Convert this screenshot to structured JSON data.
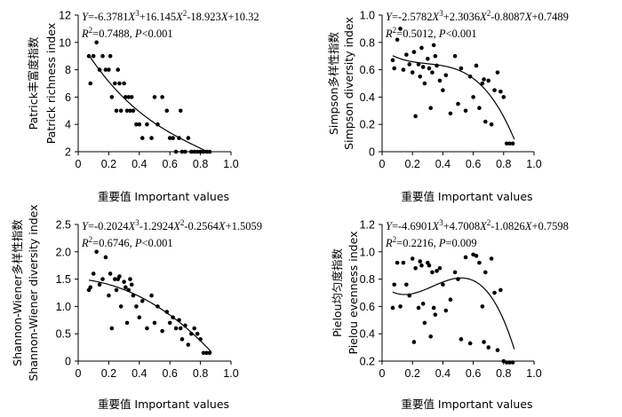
{
  "chart_data": [
    {
      "type": "scatter",
      "equation": "Y=-6.3781X³+16.145X²-18.923X+10.32",
      "r2": "R²=0.7488, P<0.001",
      "ylabel_cn": "Patrick丰富度指数",
      "ylabel_en": "Patrick richness index",
      "xlabel": "重要值 Important values",
      "xlim": [
        0,
        1.0
      ],
      "ylim": [
        2,
        12
      ],
      "xticks": [
        "0",
        "0.2",
        "0.4",
        "0.6",
        "0.8",
        "1.0"
      ],
      "xtick_values": [
        0,
        0.2,
        0.4,
        0.6,
        0.8,
        1.0
      ],
      "yticks": [
        "2",
        "4",
        "6",
        "8",
        "10",
        "12"
      ],
      "ytick_values": [
        2,
        4,
        6,
        8,
        10,
        12
      ],
      "coef": [
        -6.3781,
        16.145,
        -18.923,
        10.32
      ],
      "fit_range": [
        0.07,
        0.87
      ],
      "points": [
        [
          0.07,
          9
        ],
        [
          0.08,
          7
        ],
        [
          0.1,
          9
        ],
        [
          0.12,
          10
        ],
        [
          0.14,
          8
        ],
        [
          0.16,
          9
        ],
        [
          0.18,
          8
        ],
        [
          0.2,
          8
        ],
        [
          0.21,
          9
        ],
        [
          0.22,
          6
        ],
        [
          0.24,
          7
        ],
        [
          0.25,
          5
        ],
        [
          0.26,
          8
        ],
        [
          0.27,
          7
        ],
        [
          0.28,
          5
        ],
        [
          0.3,
          7
        ],
        [
          0.31,
          6
        ],
        [
          0.32,
          5
        ],
        [
          0.33,
          6
        ],
        [
          0.34,
          5
        ],
        [
          0.35,
          6
        ],
        [
          0.36,
          5
        ],
        [
          0.38,
          4
        ],
        [
          0.4,
          4
        ],
        [
          0.42,
          3
        ],
        [
          0.45,
          4
        ],
        [
          0.48,
          3
        ],
        [
          0.5,
          6
        ],
        [
          0.52,
          4
        ],
        [
          0.55,
          6
        ],
        [
          0.58,
          5
        ],
        [
          0.6,
          3
        ],
        [
          0.62,
          3
        ],
        [
          0.64,
          2
        ],
        [
          0.66,
          3
        ],
        [
          0.67,
          5
        ],
        [
          0.68,
          2
        ],
        [
          0.7,
          2
        ],
        [
          0.72,
          3
        ],
        [
          0.74,
          2
        ],
        [
          0.76,
          2
        ],
        [
          0.78,
          2
        ],
        [
          0.8,
          2
        ],
        [
          0.82,
          2
        ],
        [
          0.84,
          2
        ],
        [
          0.86,
          2
        ]
      ]
    },
    {
      "type": "scatter",
      "equation": "Y=-2.5782X³+2.3036X²-0.8087X+0.7489",
      "r2": "R²=0.5012, P<0.001",
      "ylabel_cn": "Simpson多样性指数",
      "ylabel_en": "Simpson diversity index",
      "xlabel": "重要值 Important values",
      "xlim": [
        0,
        1.0
      ],
      "ylim": [
        0,
        1.0
      ],
      "xticks": [
        "0",
        "0.2",
        "0.4",
        "0.6",
        "0.8",
        "1.0"
      ],
      "xtick_values": [
        0,
        0.2,
        0.4,
        0.6,
        0.8,
        1.0
      ],
      "yticks": [
        "0",
        "0.2",
        "0.4",
        "0.6",
        "0.8",
        "1.0"
      ],
      "ytick_values": [
        0,
        0.2,
        0.4,
        0.6,
        0.8,
        1.0
      ],
      "coef": [
        -2.5782,
        2.3036,
        -0.8087,
        0.7489
      ],
      "fit_range": [
        0.07,
        0.87
      ],
      "points": [
        [
          0.07,
          0.67
        ],
        [
          0.08,
          0.61
        ],
        [
          0.1,
          0.82
        ],
        [
          0.12,
          0.9
        ],
        [
          0.14,
          0.6
        ],
        [
          0.16,
          0.71
        ],
        [
          0.18,
          0.64
        ],
        [
          0.2,
          0.58
        ],
        [
          0.21,
          0.73
        ],
        [
          0.22,
          0.26
        ],
        [
          0.24,
          0.64
        ],
        [
          0.25,
          0.55
        ],
        [
          0.26,
          0.76
        ],
        [
          0.27,
          0.62
        ],
        [
          0.28,
          0.5
        ],
        [
          0.3,
          0.68
        ],
        [
          0.31,
          0.61
        ],
        [
          0.32,
          0.32
        ],
        [
          0.33,
          0.58
        ],
        [
          0.34,
          0.78
        ],
        [
          0.35,
          0.7
        ],
        [
          0.36,
          0.63
        ],
        [
          0.38,
          0.52
        ],
        [
          0.4,
          0.45
        ],
        [
          0.42,
          0.56
        ],
        [
          0.45,
          0.28
        ],
        [
          0.48,
          0.7
        ],
        [
          0.5,
          0.35
        ],
        [
          0.52,
          0.61
        ],
        [
          0.55,
          0.3
        ],
        [
          0.58,
          0.55
        ],
        [
          0.6,
          0.4
        ],
        [
          0.62,
          0.63
        ],
        [
          0.64,
          0.32
        ],
        [
          0.66,
          0.5
        ],
        [
          0.67,
          0.53
        ],
        [
          0.68,
          0.22
        ],
        [
          0.7,
          0.52
        ],
        [
          0.72,
          0.2
        ],
        [
          0.74,
          0.45
        ],
        [
          0.76,
          0.58
        ],
        [
          0.78,
          0.44
        ],
        [
          0.8,
          0.4
        ],
        [
          0.82,
          0.06
        ],
        [
          0.84,
          0.06
        ],
        [
          0.86,
          0.06
        ]
      ]
    },
    {
      "type": "scatter",
      "equation": "Y=-0.2024X³-1.2924X²-0.2564X+1.5059",
      "r2": "R²=0.6746, P<0.001",
      "ylabel_cn": "Shannon-Wiener多样性指数",
      "ylabel_en": "Shannon-Wiener diversity index",
      "xlabel": "重要值 Important values",
      "xlim": [
        0,
        1.0
      ],
      "ylim": [
        0,
        2.5
      ],
      "xticks": [
        "0",
        "0.2",
        "0.4",
        "0.6",
        "0.8",
        "1.0"
      ],
      "xtick_values": [
        0,
        0.2,
        0.4,
        0.6,
        0.8,
        1.0
      ],
      "yticks": [
        "0",
        "0.5",
        "1.0",
        "1.5",
        "2.0",
        "2.5"
      ],
      "ytick_values": [
        0,
        0.5,
        1.0,
        1.5,
        2.0,
        2.5
      ],
      "coef": [
        -0.2024,
        -1.2924,
        -0.2564,
        1.5059
      ],
      "fit_range": [
        0.07,
        0.87
      ],
      "points": [
        [
          0.07,
          1.3
        ],
        [
          0.08,
          1.35
        ],
        [
          0.1,
          1.6
        ],
        [
          0.12,
          2.0
        ],
        [
          0.14,
          1.4
        ],
        [
          0.16,
          1.5
        ],
        [
          0.18,
          1.9
        ],
        [
          0.2,
          1.2
        ],
        [
          0.21,
          1.6
        ],
        [
          0.22,
          0.6
        ],
        [
          0.24,
          1.5
        ],
        [
          0.25,
          1.3
        ],
        [
          0.26,
          1.5
        ],
        [
          0.27,
          1.55
        ],
        [
          0.28,
          1.0
        ],
        [
          0.3,
          1.45
        ],
        [
          0.31,
          1.35
        ],
        [
          0.32,
          0.7
        ],
        [
          0.33,
          1.3
        ],
        [
          0.34,
          1.5
        ],
        [
          0.35,
          1.4
        ],
        [
          0.36,
          1.2
        ],
        [
          0.38,
          1.0
        ],
        [
          0.4,
          0.8
        ],
        [
          0.42,
          1.1
        ],
        [
          0.45,
          0.6
        ],
        [
          0.48,
          1.2
        ],
        [
          0.5,
          0.7
        ],
        [
          0.52,
          1.0
        ],
        [
          0.55,
          0.55
        ],
        [
          0.58,
          0.9
        ],
        [
          0.6,
          0.7
        ],
        [
          0.62,
          0.8
        ],
        [
          0.64,
          0.6
        ],
        [
          0.66,
          0.75
        ],
        [
          0.67,
          0.6
        ],
        [
          0.68,
          0.4
        ],
        [
          0.7,
          0.65
        ],
        [
          0.72,
          0.3
        ],
        [
          0.74,
          0.5
        ],
        [
          0.76,
          0.6
        ],
        [
          0.78,
          0.5
        ],
        [
          0.8,
          0.4
        ],
        [
          0.82,
          0.15
        ],
        [
          0.84,
          0.15
        ],
        [
          0.86,
          0.15
        ]
      ]
    },
    {
      "type": "scatter",
      "equation": "Y=-4.6901X³+4.7008X²-1.0826X+0.7598",
      "r2": "R²=0.2216, P=0.009",
      "ylabel_cn": "Pielou均匀度指数",
      "ylabel_en": "Pielou evenness index",
      "xlabel": "重要值 Important values",
      "xlim": [
        0,
        1.0
      ],
      "ylim": [
        0.2,
        1.2
      ],
      "xticks": [
        "0",
        "0.2",
        "0.4",
        "0.6",
        "0.8",
        "1.0"
      ],
      "xtick_values": [
        0,
        0.2,
        0.4,
        0.6,
        0.8,
        1.0
      ],
      "yticks": [
        "0.2",
        "0.4",
        "0.6",
        "0.8",
        "1.0",
        "1.2"
      ],
      "ytick_values": [
        0.2,
        0.4,
        0.6,
        0.8,
        1.0,
        1.2
      ],
      "coef": [
        -4.6901,
        4.7008,
        -1.0826,
        0.7598
      ],
      "fit_range": [
        0.07,
        0.87
      ],
      "points": [
        [
          0.07,
          0.59
        ],
        [
          0.08,
          0.76
        ],
        [
          0.1,
          0.92
        ],
        [
          0.12,
          0.6
        ],
        [
          0.14,
          0.92
        ],
        [
          0.16,
          0.76
        ],
        [
          0.18,
          0.68
        ],
        [
          0.2,
          0.95
        ],
        [
          0.21,
          0.34
        ],
        [
          0.22,
          0.88
        ],
        [
          0.24,
          0.59
        ],
        [
          0.25,
          0.93
        ],
        [
          0.26,
          0.9
        ],
        [
          0.27,
          0.62
        ],
        [
          0.28,
          0.48
        ],
        [
          0.3,
          0.92
        ],
        [
          0.31,
          0.9
        ],
        [
          0.32,
          0.38
        ],
        [
          0.33,
          0.85
        ],
        [
          0.34,
          0.59
        ],
        [
          0.35,
          0.54
        ],
        [
          0.36,
          0.86
        ],
        [
          0.38,
          0.88
        ],
        [
          0.4,
          0.76
        ],
        [
          0.42,
          0.57
        ],
        [
          0.45,
          0.65
        ],
        [
          0.48,
          0.85
        ],
        [
          0.5,
          0.8
        ],
        [
          0.52,
          0.36
        ],
        [
          0.55,
          0.96
        ],
        [
          0.58,
          0.33
        ],
        [
          0.6,
          0.98
        ],
        [
          0.62,
          0.97
        ],
        [
          0.64,
          0.92
        ],
        [
          0.66,
          0.6
        ],
        [
          0.67,
          0.34
        ],
        [
          0.68,
          0.85
        ],
        [
          0.7,
          0.3
        ],
        [
          0.72,
          0.95
        ],
        [
          0.74,
          0.7
        ],
        [
          0.76,
          0.28
        ],
        [
          0.78,
          0.72
        ],
        [
          0.8,
          0.2
        ],
        [
          0.82,
          0.19
        ],
        [
          0.84,
          0.19
        ],
        [
          0.86,
          0.19
        ]
      ]
    }
  ]
}
